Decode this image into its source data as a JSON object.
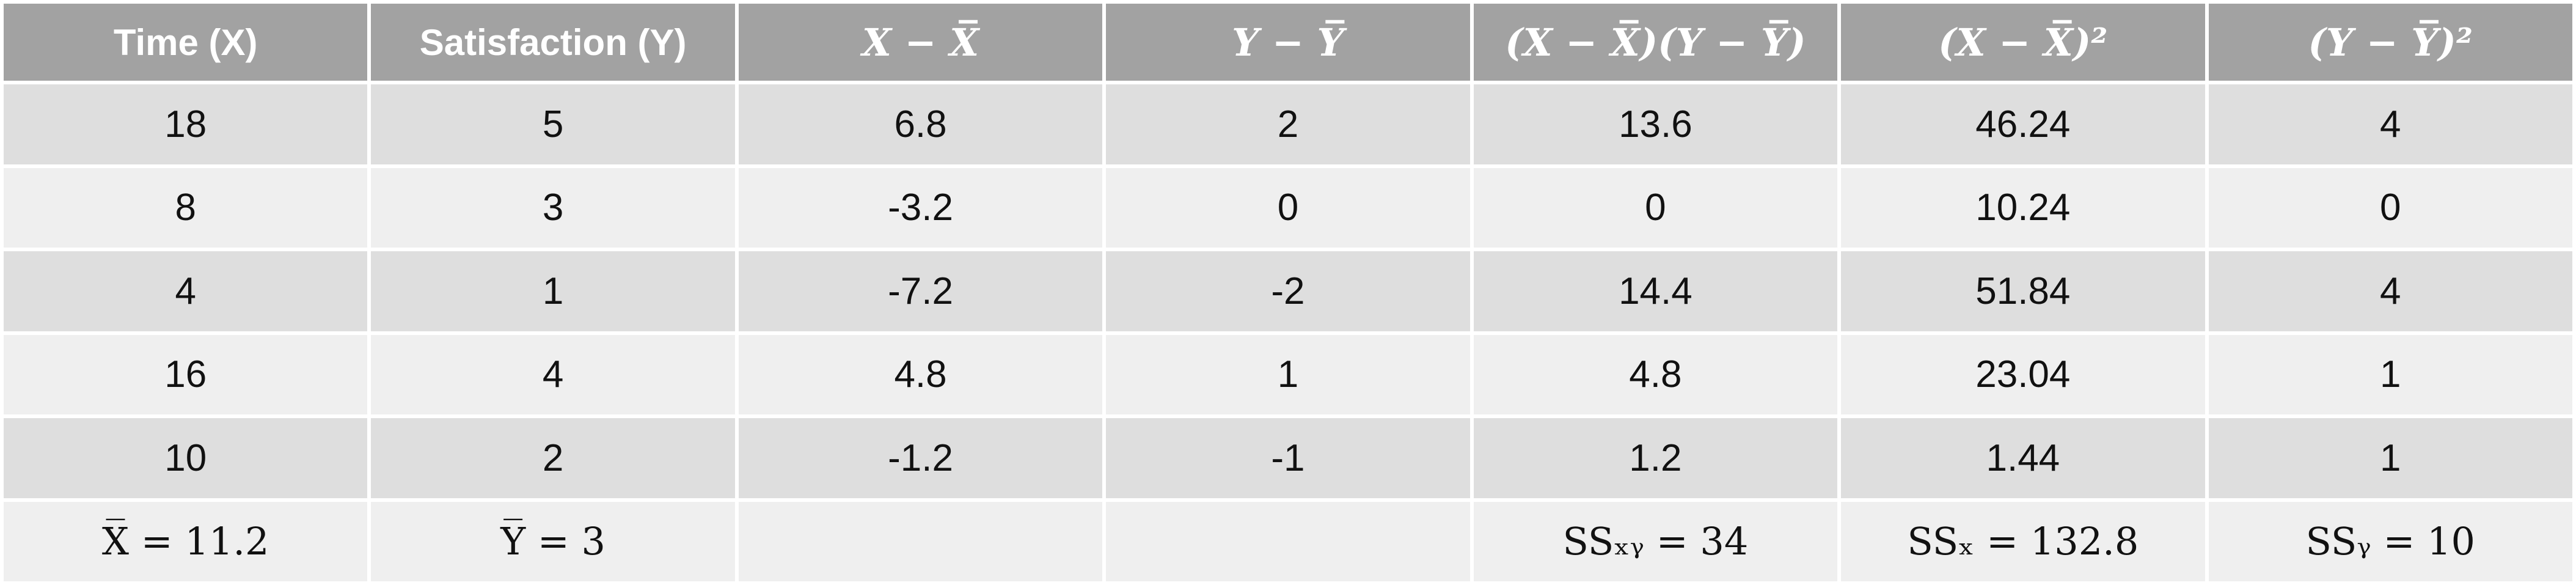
{
  "table": {
    "headers": [
      {
        "text": "Time (X)"
      },
      {
        "text": "Satisfaction (Y)"
      },
      {
        "text": "X − X̅"
      },
      {
        "text": "Y − Y̅"
      },
      {
        "text": "(X − X̅)(Y − Y̅)"
      },
      {
        "text": "(X − X̅)²"
      },
      {
        "text": "(Y − Y̅)²"
      }
    ],
    "rows": [
      [
        "18",
        "5",
        "6.8",
        "2",
        "13.6",
        "46.24",
        "4"
      ],
      [
        "8",
        "3",
        "-3.2",
        "0",
        "0",
        "10.24",
        "0"
      ],
      [
        "4",
        "1",
        "-7.2",
        "-2",
        "14.4",
        "51.84",
        "4"
      ],
      [
        "16",
        "4",
        "4.8",
        "1",
        "4.8",
        "23.04",
        "1"
      ],
      [
        "10",
        "2",
        "-1.2",
        "-1",
        "1.2",
        "1.44",
        "1"
      ]
    ],
    "summary": {
      "mean_x": "X̅ = 11.2",
      "mean_y": "Y̅ = 3",
      "col3": "",
      "col4": "",
      "ss_xy": "SSₓᵧ = 34",
      "ss_x": "SSₓ = 132.8",
      "ss_y": "SSᵧ = 10"
    }
  }
}
